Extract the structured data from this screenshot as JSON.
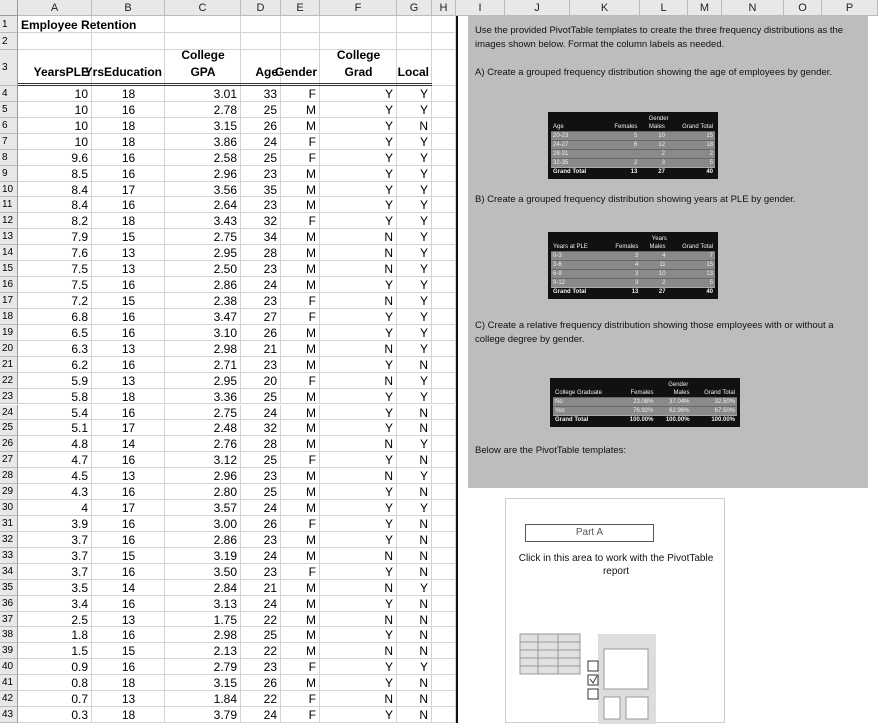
{
  "column_letters": [
    "A",
    "B",
    "C",
    "D",
    "E",
    "F",
    "G",
    "H",
    "I",
    "J",
    "K",
    "L",
    "M",
    "N",
    "O",
    "P"
  ],
  "row_numbers": [
    1,
    2,
    3,
    4,
    5,
    6,
    7,
    8,
    9,
    10,
    11,
    12,
    13,
    14,
    15,
    16,
    17,
    18,
    19,
    20,
    21,
    22,
    23,
    24,
    25,
    26,
    27,
    28,
    29,
    30,
    31,
    32,
    33,
    34,
    35,
    36,
    37,
    38,
    39,
    40,
    41,
    42,
    43
  ],
  "sheet": {
    "title": "Employee Retention",
    "headers": [
      "YearsPLE",
      "YrsEducation",
      "College GPA",
      "Age",
      "Gender",
      "College Grad",
      "Local"
    ],
    "rows": [
      [
        "10",
        "18",
        "3.01",
        "33",
        "F",
        "Y",
        "Y"
      ],
      [
        "10",
        "16",
        "2.78",
        "25",
        "M",
        "Y",
        "Y"
      ],
      [
        "10",
        "18",
        "3.15",
        "26",
        "M",
        "Y",
        "N"
      ],
      [
        "10",
        "18",
        "3.86",
        "24",
        "F",
        "Y",
        "Y"
      ],
      [
        "9.6",
        "16",
        "2.58",
        "25",
        "F",
        "Y",
        "Y"
      ],
      [
        "8.5",
        "16",
        "2.96",
        "23",
        "M",
        "Y",
        "Y"
      ],
      [
        "8.4",
        "17",
        "3.56",
        "35",
        "M",
        "Y",
        "Y"
      ],
      [
        "8.4",
        "16",
        "2.64",
        "23",
        "M",
        "Y",
        "Y"
      ],
      [
        "8.2",
        "18",
        "3.43",
        "32",
        "F",
        "Y",
        "Y"
      ],
      [
        "7.9",
        "15",
        "2.75",
        "34",
        "M",
        "N",
        "Y"
      ],
      [
        "7.6",
        "13",
        "2.95",
        "28",
        "M",
        "N",
        "Y"
      ],
      [
        "7.5",
        "13",
        "2.50",
        "23",
        "M",
        "N",
        "Y"
      ],
      [
        "7.5",
        "16",
        "2.86",
        "24",
        "M",
        "Y",
        "Y"
      ],
      [
        "7.2",
        "15",
        "2.38",
        "23",
        "F",
        "N",
        "Y"
      ],
      [
        "6.8",
        "16",
        "3.47",
        "27",
        "F",
        "Y",
        "Y"
      ],
      [
        "6.5",
        "16",
        "3.10",
        "26",
        "M",
        "Y",
        "Y"
      ],
      [
        "6.3",
        "13",
        "2.98",
        "21",
        "M",
        "N",
        "Y"
      ],
      [
        "6.2",
        "16",
        "2.71",
        "23",
        "M",
        "Y",
        "N"
      ],
      [
        "5.9",
        "13",
        "2.95",
        "20",
        "F",
        "N",
        "Y"
      ],
      [
        "5.8",
        "18",
        "3.36",
        "25",
        "M",
        "Y",
        "Y"
      ],
      [
        "5.4",
        "16",
        "2.75",
        "24",
        "M",
        "Y",
        "N"
      ],
      [
        "5.1",
        "17",
        "2.48",
        "32",
        "M",
        "Y",
        "N"
      ],
      [
        "4.8",
        "14",
        "2.76",
        "28",
        "M",
        "N",
        "Y"
      ],
      [
        "4.7",
        "16",
        "3.12",
        "25",
        "F",
        "Y",
        "N"
      ],
      [
        "4.5",
        "13",
        "2.96",
        "23",
        "M",
        "N",
        "Y"
      ],
      [
        "4.3",
        "16",
        "2.80",
        "25",
        "M",
        "Y",
        "N"
      ],
      [
        "4",
        "17",
        "3.57",
        "24",
        "M",
        "Y",
        "Y"
      ],
      [
        "3.9",
        "16",
        "3.00",
        "26",
        "F",
        "Y",
        "N"
      ],
      [
        "3.7",
        "16",
        "2.86",
        "23",
        "M",
        "Y",
        "N"
      ],
      [
        "3.7",
        "15",
        "3.19",
        "24",
        "M",
        "N",
        "N"
      ],
      [
        "3.7",
        "16",
        "3.50",
        "23",
        "F",
        "Y",
        "N"
      ],
      [
        "3.5",
        "14",
        "2.84",
        "21",
        "M",
        "N",
        "Y"
      ],
      [
        "3.4",
        "16",
        "3.13",
        "24",
        "M",
        "Y",
        "N"
      ],
      [
        "2.5",
        "13",
        "1.75",
        "22",
        "M",
        "N",
        "N"
      ],
      [
        "1.8",
        "16",
        "2.98",
        "25",
        "M",
        "Y",
        "N"
      ],
      [
        "1.5",
        "15",
        "2.13",
        "22",
        "M",
        "N",
        "N"
      ],
      [
        "0.9",
        "16",
        "2.79",
        "23",
        "F",
        "Y",
        "Y"
      ],
      [
        "0.8",
        "18",
        "3.15",
        "26",
        "M",
        "Y",
        "N"
      ],
      [
        "0.7",
        "13",
        "1.84",
        "22",
        "F",
        "N",
        "N"
      ],
      [
        "0.3",
        "18",
        "3.79",
        "24",
        "F",
        "Y",
        "N"
      ]
    ]
  },
  "instructions": {
    "intro": "Use the provided PivotTable templates to create the three frequency distributions as the images shown below. Format the column labels as needed.",
    "part_a": "A) Create a grouped frequency distribution showing the age of employees by gender.",
    "part_b": "B) Create a grouped frequency distribution showing years at PLE by gender.",
    "part_c": "C) Create a relative frequency distribution showing those employees with or without a college degree by gender.",
    "below": "Below are the PivotTable templates:"
  },
  "pivots": [
    {
      "field": "Gender",
      "row_label": "Age",
      "columns": [
        "Females",
        "Males",
        "Grand Total"
      ],
      "rows": [
        {
          "label": "20-23",
          "values": [
            5,
            10,
            15
          ]
        },
        {
          "label": "24-27",
          "values": [
            6,
            12,
            18
          ]
        },
        {
          "label": "28-31",
          "values": [
            null,
            2,
            2
          ]
        },
        {
          "label": "32-35",
          "values": [
            2,
            3,
            5
          ]
        }
      ],
      "total": {
        "label": "Grand Total",
        "values": [
          13,
          27,
          40
        ]
      }
    },
    {
      "field": "Years",
      "row_label": "Years at PLE",
      "columns": [
        "Females",
        "Males",
        "Grand Total"
      ],
      "rows": [
        {
          "label": "0-3",
          "values": [
            3,
            4,
            7
          ]
        },
        {
          "label": "3-6",
          "values": [
            4,
            11,
            15
          ]
        },
        {
          "label": "6-9",
          "values": [
            3,
            10,
            13
          ]
        },
        {
          "label": "9-12",
          "values": [
            3,
            2,
            5
          ]
        }
      ],
      "total": {
        "label": "Grand Total",
        "values": [
          13,
          27,
          40
        ]
      }
    },
    {
      "field": "Gender",
      "row_label": "College Graduate",
      "columns": [
        "Females",
        "Males",
        "Grand Total"
      ],
      "rows": [
        {
          "label": "No",
          "values": [
            "23.08%",
            "37.04%",
            "32.50%"
          ]
        },
        {
          "label": "Yes",
          "values": [
            "76.92%",
            "62.96%",
            "67.50%"
          ]
        }
      ],
      "total": {
        "label": "Grand Total",
        "values": [
          "100.00%",
          "100.00%",
          "100.00%"
        ]
      }
    }
  ],
  "placeholder": {
    "title": "Part A",
    "text": "Click in this area to work with the PivotTable report"
  }
}
